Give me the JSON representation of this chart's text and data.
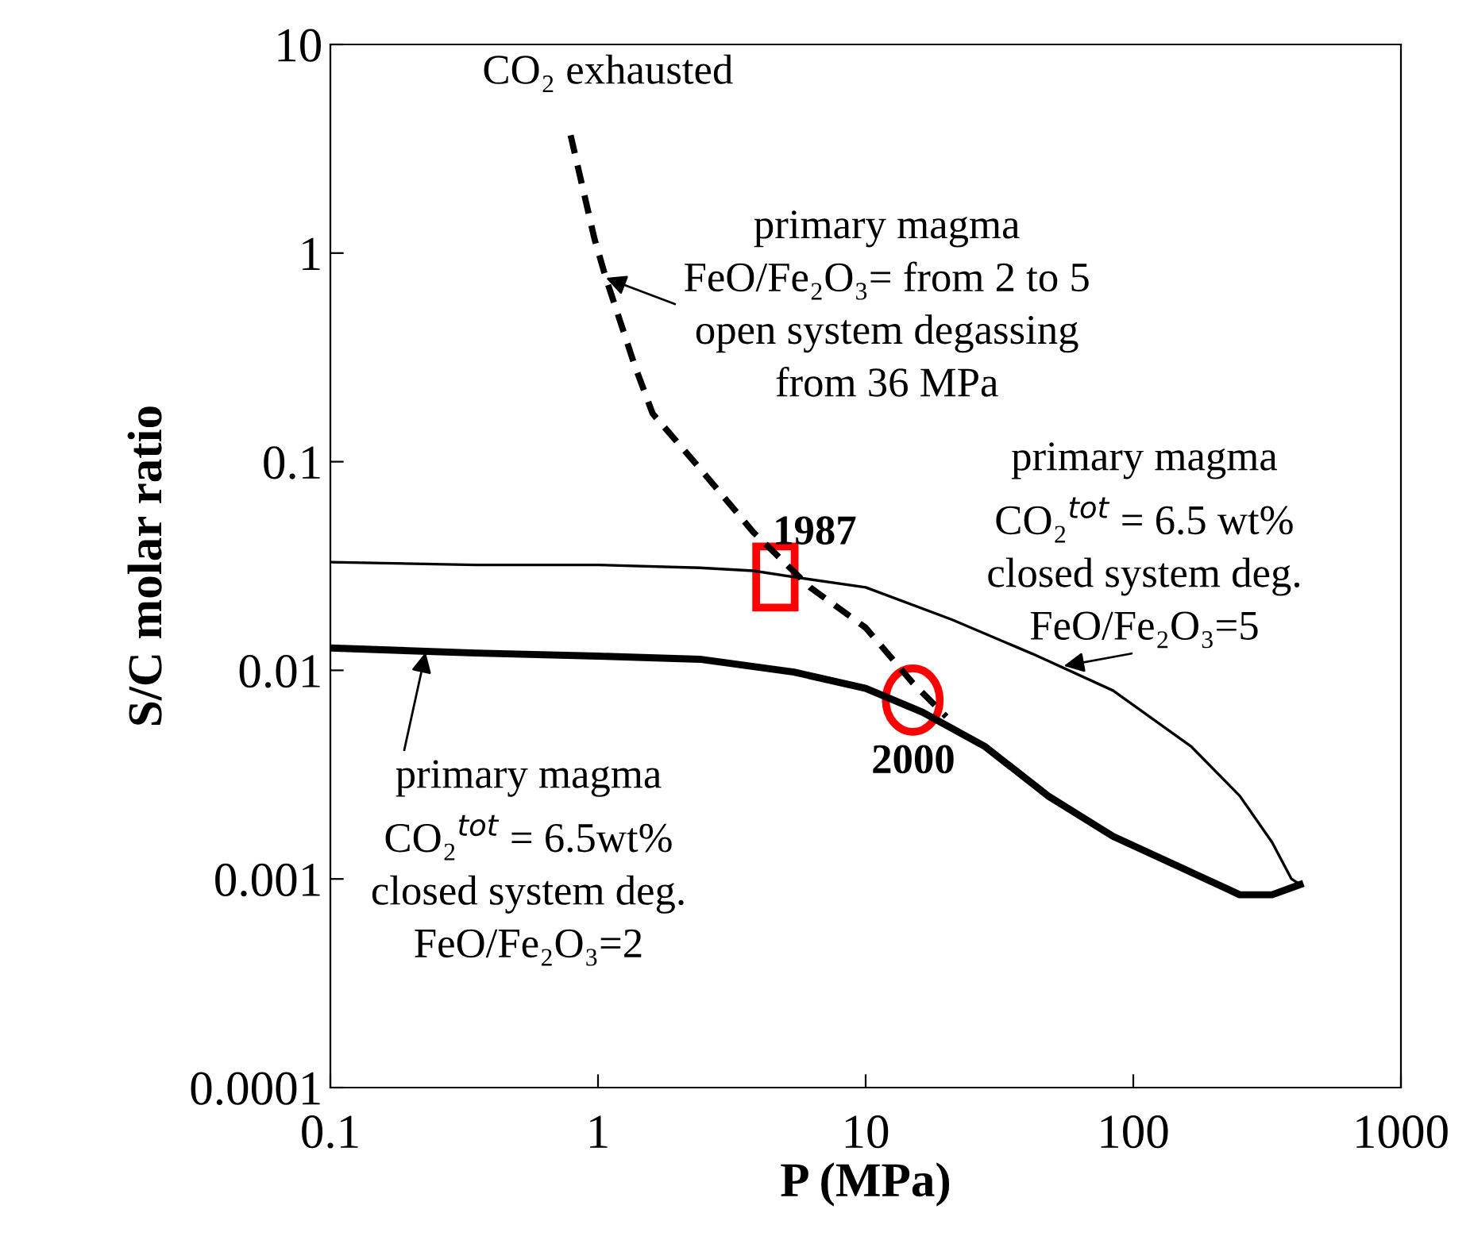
{
  "chart_data": {
    "type": "line",
    "xlabel": "P (MPa)",
    "ylabel": "S/C molar ratio",
    "log": "xy",
    "grid": false,
    "marker": "none",
    "xlim": [
      0.1,
      1000
    ],
    "xticks": [
      0.1,
      1,
      10,
      100,
      1000
    ],
    "ylim": [
      0.0001,
      10
    ],
    "yticks": [
      0.0001,
      0.001,
      0.01,
      0.1,
      1,
      10
    ],
    "series": [
      {
        "color": "#000000",
        "line_style": "solid",
        "x": [
          0.1,
          0.35,
          1,
          2.4,
          3.8,
          5.4,
          10,
          21,
          42,
          84,
          165,
          250,
          330,
          390,
          420
        ],
        "values": [
          0.033,
          0.032,
          0.032,
          0.031,
          0.03,
          0.028,
          0.025,
          0.0175,
          0.012,
          0.008,
          0.0043,
          0.0025,
          0.0015,
          0.001,
          0.00094
        ]
      },
      {
        "color": "#000000",
        "line_style": "solid",
        "x": [
          0.1,
          0.35,
          1,
          2.4,
          5.4,
          10,
          16.3,
          28,
          48,
          84,
          145,
          250,
          330,
          420
        ],
        "values": [
          0.0128,
          0.0121,
          0.0117,
          0.0113,
          0.0098,
          0.0082,
          0.0063,
          0.0043,
          0.0025,
          0.0016,
          0.00116,
          0.00084,
          0.00084,
          0.00094
        ]
      },
      {
        "color": "#000000",
        "line_style": "dashed",
        "x": [
          0.79,
          0.97,
          1.07,
          1.37,
          1.6,
          2.4,
          3.8,
          6.2,
          10,
          15,
          20
        ],
        "values": [
          3.67,
          1.17,
          0.76,
          0.29,
          0.17,
          0.093,
          0.046,
          0.025,
          0.016,
          0.0087,
          0.006
        ]
      }
    ],
    "annotations": [
      {
        "text": "CO₂ exhausted",
        "x": 0.79,
        "y": 3.67
      },
      {
        "text": "primary magma\nFeO/Fe₂O₃= from 2 to 5\nopen system degassing\nfrom 36 MPa",
        "x": 1.07,
        "y": 0.76
      },
      {
        "text": "primary magma\nCO₂$^{tot}$ = 6.5 wt%\nclosed system deg.\nFeO/Fe₂O₃=5",
        "x": 55,
        "y": 0.0105
      },
      {
        "text": "primary magma\nCO₂$^{tot}$ = 6.5wt%\nclosed system deg.\nFeO/Fe₂O₃=2",
        "x": 0.227,
        "y": 0.0122
      },
      {
        "text": "1987",
        "x": 4.6,
        "y": 0.028
      },
      {
        "text": "2000",
        "x": 15,
        "y": 0.0072
      }
    ]
  }
}
